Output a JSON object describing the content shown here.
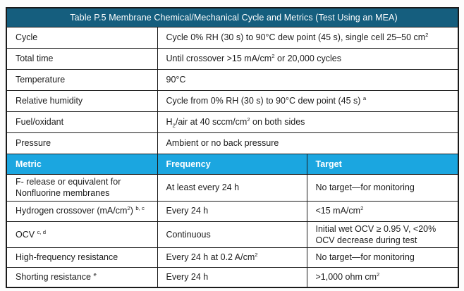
{
  "table": {
    "title": "Table P.5 Membrane Chemical/Mechanical Cycle and Metrics (Test Using an MEA)",
    "colors": {
      "title_bg": "#155e7e",
      "subheader_bg": "#1ba6e0",
      "header_text": "#ffffff",
      "body_text": "#1c1c1c",
      "border": "#1a1a1a"
    },
    "spec_rows": [
      {
        "label": "Cycle",
        "value": [
          {
            "t": "Cycle 0% RH (30 s) to 90°C dew point (45 s), single cell 25–50 cm"
          },
          {
            "t": "2",
            "s": "sup"
          }
        ]
      },
      {
        "label": "Total time",
        "value": [
          {
            "t": "Until crossover >15 mA/cm"
          },
          {
            "t": "2",
            "s": "sup"
          },
          {
            "t": " or 20,000 cycles"
          }
        ]
      },
      {
        "label": "Temperature",
        "value": [
          {
            "t": "90°C"
          }
        ]
      },
      {
        "label": "Relative humidity",
        "value": [
          {
            "t": "Cycle from 0% RH (30 s) to 90°C dew point (45 s) "
          },
          {
            "t": "a",
            "s": "sup"
          }
        ]
      },
      {
        "label": "Fuel/oxidant",
        "value": [
          {
            "t": "H"
          },
          {
            "t": "2",
            "s": "sub"
          },
          {
            "t": "/air at 40 sccm/cm"
          },
          {
            "t": "2",
            "s": "sup"
          },
          {
            "t": " on both sides"
          }
        ]
      },
      {
        "label": "Pressure",
        "value": [
          {
            "t": "Ambient or no back pressure"
          }
        ]
      }
    ],
    "metric_header": {
      "metric": "Metric",
      "frequency": "Frequency",
      "target": "Target"
    },
    "metric_rows": [
      {
        "metric": [
          {
            "t": "F- release or equivalent for Nonfluorine membranes"
          }
        ],
        "frequency": [
          {
            "t": "At least every 24 h"
          }
        ],
        "target": [
          {
            "t": "No target—for monitoring"
          }
        ]
      },
      {
        "metric": [
          {
            "t": "Hydrogen crossover (mA/cm"
          },
          {
            "t": "2",
            "s": "sup"
          },
          {
            "t": ") "
          },
          {
            "t": "b, c",
            "s": "sup"
          }
        ],
        "frequency": [
          {
            "t": "Every 24 h"
          }
        ],
        "target": [
          {
            "t": "<15 mA/cm"
          },
          {
            "t": "2",
            "s": "sup"
          }
        ]
      },
      {
        "metric": [
          {
            "t": "OCV "
          },
          {
            "t": "c, d",
            "s": "sup"
          }
        ],
        "frequency": [
          {
            "t": "Continuous"
          }
        ],
        "target": [
          {
            "t": "Initial wet OCV ≥ 0.95 V, <20% OCV decrease during test"
          }
        ]
      },
      {
        "metric": [
          {
            "t": "High-frequency resistance"
          }
        ],
        "frequency": [
          {
            "t": "Every 24 h at 0.2 A/cm"
          },
          {
            "t": "2",
            "s": "sup"
          }
        ],
        "target": [
          {
            "t": "No target—for monitoring"
          }
        ]
      },
      {
        "metric": [
          {
            "t": "Shorting resistance "
          },
          {
            "t": "e",
            "s": "sup"
          }
        ],
        "frequency": [
          {
            "t": "Every 24 h"
          }
        ],
        "target": [
          {
            "t": ">1,000 ohm cm"
          },
          {
            "t": "2",
            "s": "sup"
          }
        ]
      }
    ]
  }
}
